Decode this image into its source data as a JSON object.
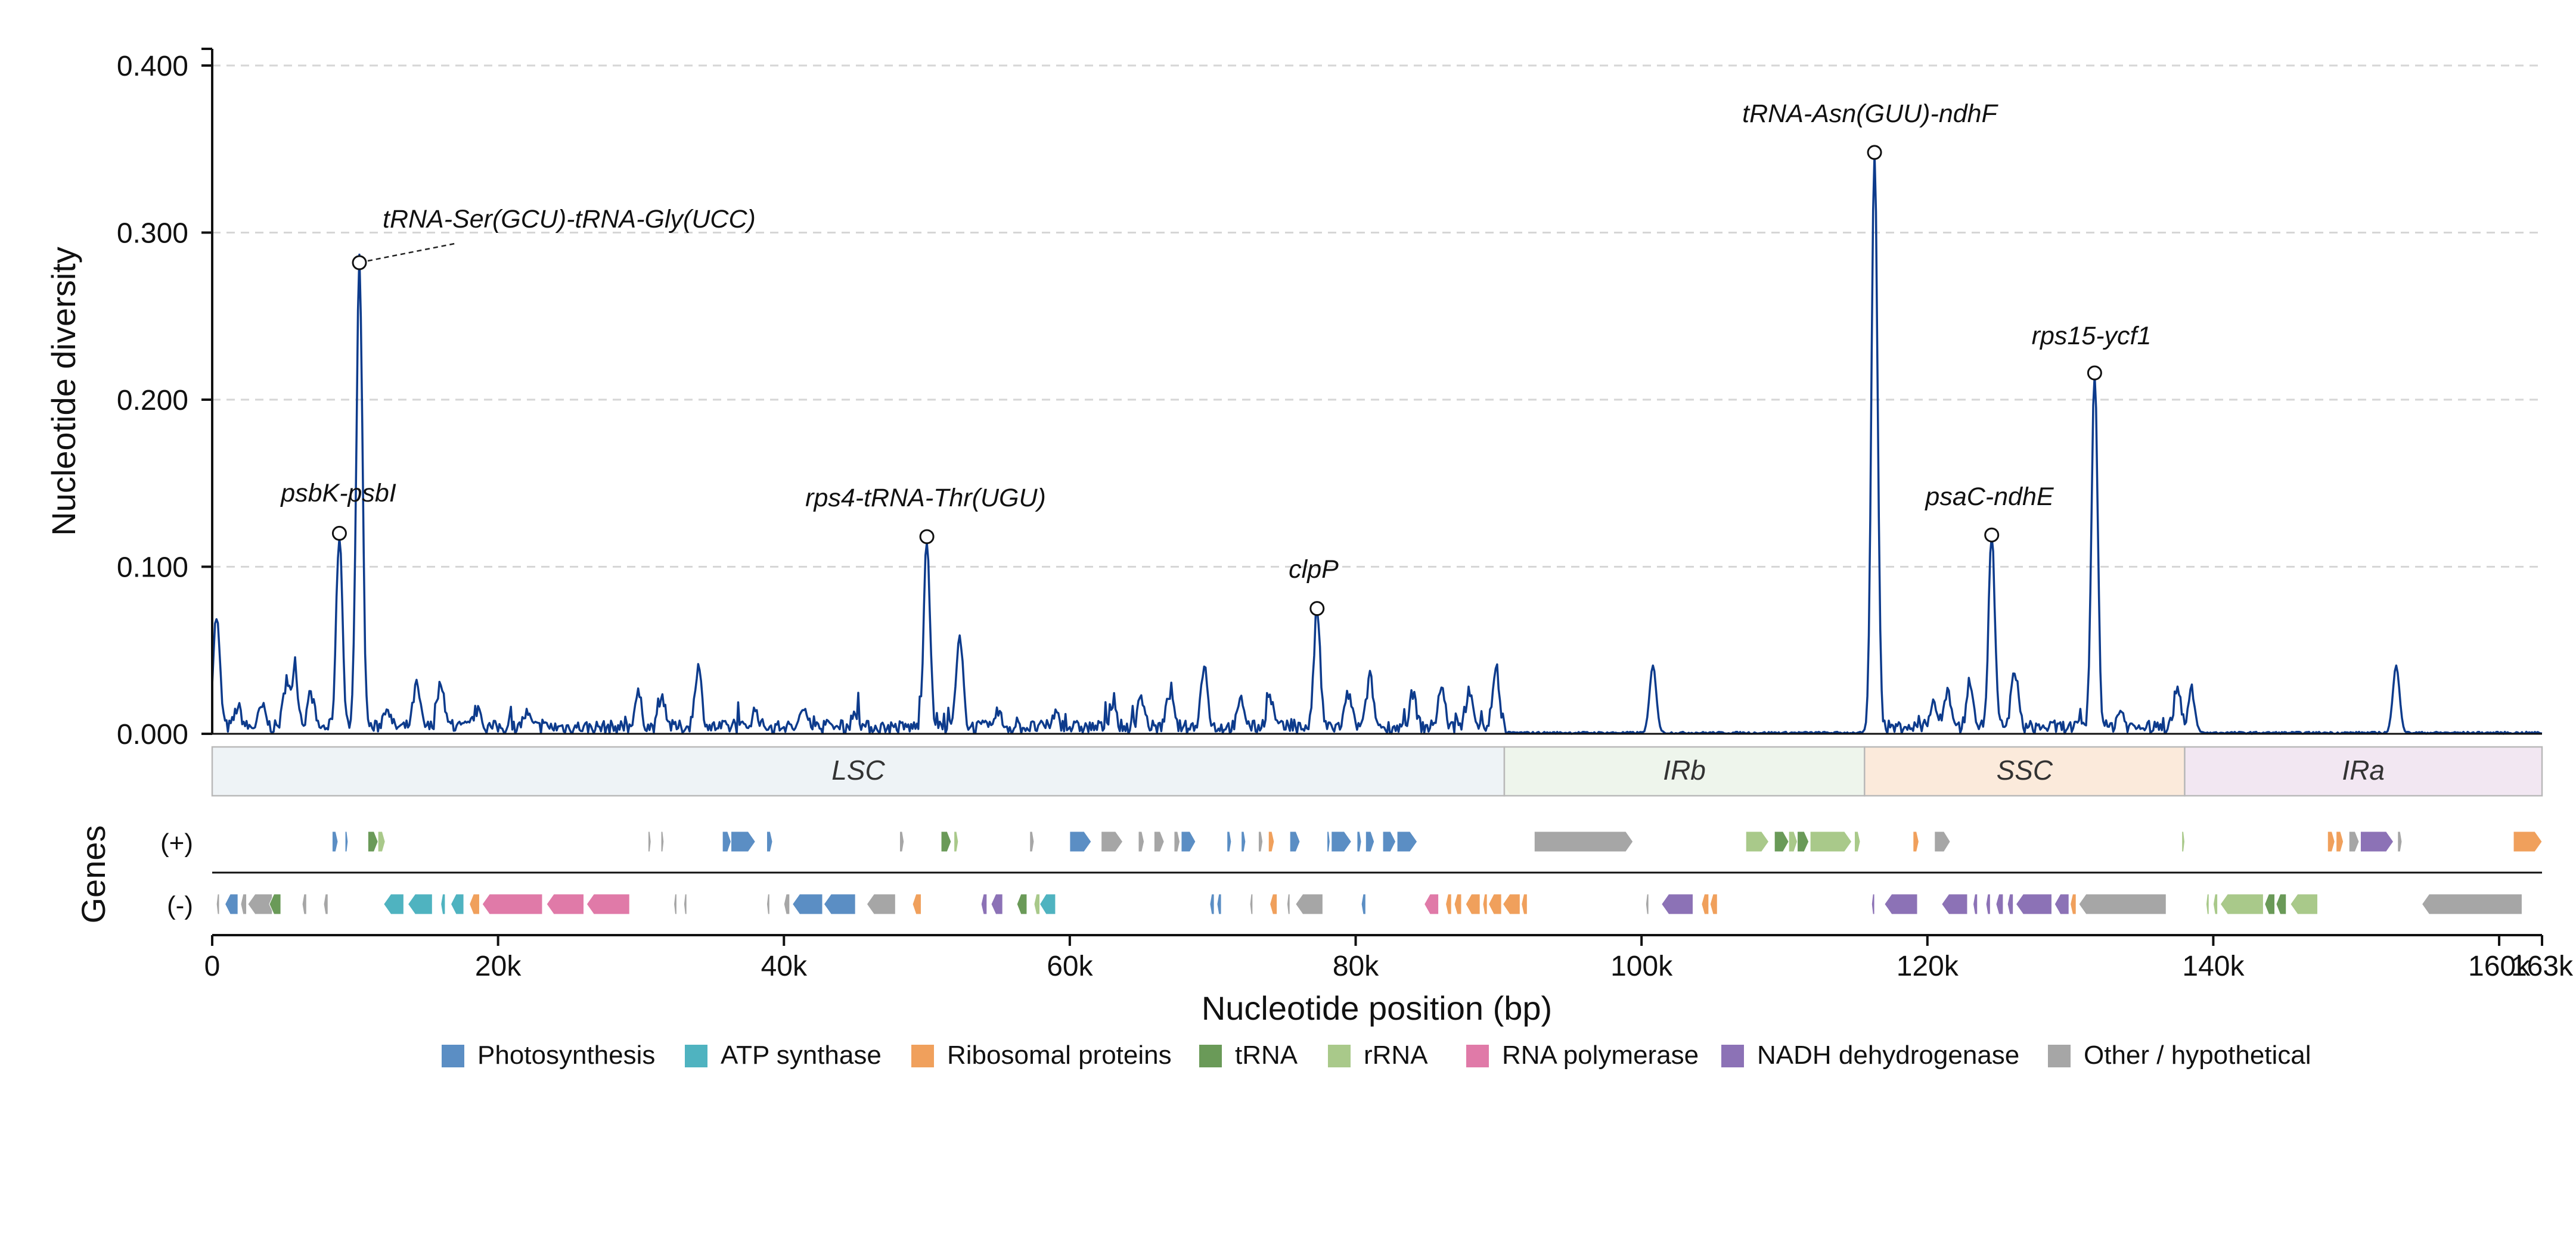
{
  "chart_data": {
    "type": "line",
    "title": "",
    "xlabel": "Nucleotide position (bp)",
    "ylabel": "Nucleotide diversity",
    "xlim": [
      0,
      163000
    ],
    "ylim": [
      0,
      0.41
    ],
    "x_ticks": [
      0,
      20000,
      40000,
      60000,
      80000,
      100000,
      120000,
      140000,
      160000,
      163000
    ],
    "x_tick_labels": [
      "0",
      "20k",
      "40k",
      "60k",
      "80k",
      "100k",
      "120k",
      "140k",
      "160k",
      "163k"
    ],
    "y_ticks": [
      0,
      0.1,
      0.2,
      0.3,
      0.4
    ],
    "y_tick_labels": [
      "0.000",
      "0.100",
      "0.200",
      "0.300",
      "0.400"
    ],
    "grid": "horizontal dashed",
    "line_color": "#0d3b8c",
    "peaks": [
      {
        "label": "psbK-psbI",
        "x": 8900,
        "y": 0.12
      },
      {
        "label": "tRNA-Ser(GCU)-tRNA-Gly(UCC)",
        "x": 10300,
        "y": 0.282
      },
      {
        "label": "rps4-tRNA-Thr(UGU)",
        "x": 50000,
        "y": 0.118
      },
      {
        "label": "clpP",
        "x": 77300,
        "y": 0.075
      },
      {
        "label": "tRNA-Asn(GUU)-ndhF",
        "x": 116300,
        "y": 0.348
      },
      {
        "label": "psaC-ndhE",
        "x": 124500,
        "y": 0.119
      },
      {
        "label": "rps15-ycf1",
        "x": 131700,
        "y": 0.216
      }
    ],
    "baseline_bumps": [
      [
        300,
        0.066
      ],
      [
        1800,
        0.012
      ],
      [
        3500,
        0.012
      ],
      [
        5200,
        0.026
      ],
      [
        5800,
        0.03
      ],
      [
        6900,
        0.02
      ],
      [
        12200,
        0.012
      ],
      [
        14300,
        0.025
      ],
      [
        16000,
        0.028
      ],
      [
        18500,
        0.01
      ],
      [
        22000,
        0.008
      ],
      [
        29800,
        0.02
      ],
      [
        31500,
        0.018
      ],
      [
        34000,
        0.036
      ],
      [
        38000,
        0.01
      ],
      [
        41500,
        0.012
      ],
      [
        45000,
        0.009
      ],
      [
        52300,
        0.052
      ],
      [
        55000,
        0.008
      ],
      [
        59000,
        0.008
      ],
      [
        63000,
        0.012
      ],
      [
        65000,
        0.018
      ],
      [
        67000,
        0.02
      ],
      [
        69400,
        0.035
      ],
      [
        72000,
        0.016
      ],
      [
        74000,
        0.018
      ],
      [
        79500,
        0.02
      ],
      [
        81000,
        0.03
      ],
      [
        84000,
        0.02
      ],
      [
        86000,
        0.024
      ],
      [
        88000,
        0.022
      ],
      [
        89800,
        0.032
      ],
      [
        100800,
        0.04
      ],
      [
        120400,
        0.016
      ],
      [
        121400,
        0.022
      ],
      [
        123000,
        0.028
      ],
      [
        126100,
        0.035
      ],
      [
        133500,
        0.01
      ],
      [
        137500,
        0.025
      ],
      [
        138500,
        0.022
      ],
      [
        152800,
        0.04
      ]
    ],
    "regions": [
      {
        "name": "LSC",
        "start": 0,
        "end": 90400,
        "fill": "#eef3f6"
      },
      {
        "name": "IRb",
        "start": 90400,
        "end": 115600,
        "fill": "#eef5ec"
      },
      {
        "name": "SSC",
        "start": 115600,
        "end": 138000,
        "fill": "#fbeadb"
      },
      {
        "name": "IRa",
        "start": 138000,
        "end": 163000,
        "fill": "#f2e7f2"
      }
    ],
    "gene_track": {
      "title": "Genes",
      "plus_label": "(+)",
      "minus_label": "(-)",
      "categories": [
        {
          "name": "Photosynthesis",
          "color": "#5b8ec4"
        },
        {
          "name": "ATP synthase",
          "color": "#4fb3c0"
        },
        {
          "name": "Ribosomal proteins",
          "color": "#f0a05c"
        },
        {
          "name": "tRNA",
          "color": "#6a9a58"
        },
        {
          "name": "rRNA",
          "color": "#a9c98a"
        },
        {
          "name": "RNA polymerase",
          "color": "#e07aa8"
        },
        {
          "name": "NADH dehydrogenase",
          "color": "#8c72b6"
        },
        {
          "name": "Other / hypothetical",
          "color": "#a6a6a6"
        }
      ],
      "plus_genes": [
        [
          8400,
          8800,
          0
        ],
        [
          9300,
          9500,
          0
        ],
        [
          10900,
          11600,
          3
        ],
        [
          11600,
          12100,
          4
        ],
        [
          30500,
          30700,
          7
        ],
        [
          31400,
          31600,
          7
        ],
        [
          35700,
          36300,
          0
        ],
        [
          36300,
          38000,
          0
        ],
        [
          38800,
          39200,
          0
        ],
        [
          48100,
          48400,
          7
        ],
        [
          51000,
          51700,
          3
        ],
        [
          51900,
          52200,
          4
        ],
        [
          57200,
          57500,
          7
        ],
        [
          60000,
          61500,
          0
        ],
        [
          62200,
          63700,
          7
        ],
        [
          64800,
          65200,
          7
        ],
        [
          65900,
          66600,
          7
        ],
        [
          67300,
          67700,
          7
        ],
        [
          67800,
          68800,
          0
        ],
        [
          71000,
          71300,
          0
        ],
        [
          72000,
          72300,
          0
        ],
        [
          73200,
          73500,
          7
        ],
        [
          73900,
          74300,
          2
        ],
        [
          75400,
          76100,
          0
        ],
        [
          78000,
          78200,
          0
        ],
        [
          78300,
          79700,
          0
        ],
        [
          80100,
          80400,
          0
        ],
        [
          80700,
          81300,
          0
        ],
        [
          81900,
          82800,
          0
        ],
        [
          82900,
          84300,
          0
        ],
        [
          92500,
          99400,
          7
        ],
        [
          107300,
          108900,
          4
        ],
        [
          109300,
          110300,
          3
        ],
        [
          110300,
          110900,
          4
        ],
        [
          110900,
          111700,
          3
        ],
        [
          111800,
          114700,
          4
        ],
        [
          114900,
          115300,
          4
        ],
        [
          119000,
          119400,
          2
        ],
        [
          120500,
          121600,
          7
        ],
        [
          137800,
          138000,
          4
        ],
        [
          148000,
          148500,
          2
        ],
        [
          148600,
          149100,
          2
        ],
        [
          149500,
          150200,
          7
        ],
        [
          150300,
          152600,
          6
        ],
        [
          152900,
          153200,
          7
        ],
        [
          161000,
          163000,
          2
        ]
      ],
      "minus_genes": [
        [
          300,
          500,
          7
        ],
        [
          900,
          1800,
          0
        ],
        [
          2000,
          2400,
          7
        ],
        [
          2500,
          4200,
          7
        ],
        [
          4000,
          4800,
          3
        ],
        [
          6300,
          6600,
          7
        ],
        [
          7800,
          8100,
          7
        ],
        [
          12000,
          13400,
          1
        ],
        [
          13700,
          15400,
          1
        ],
        [
          16000,
          16300,
          1
        ],
        [
          16700,
          17600,
          1
        ],
        [
          18000,
          18700,
          2
        ],
        [
          18900,
          23100,
          5
        ],
        [
          23400,
          26000,
          5
        ],
        [
          26200,
          29200,
          5
        ],
        [
          32300,
          32500,
          7
        ],
        [
          33000,
          33200,
          7
        ],
        [
          38800,
          39000,
          7
        ],
        [
          40000,
          40400,
          7
        ],
        [
          40600,
          42700,
          0
        ],
        [
          42800,
          45000,
          0
        ],
        [
          45800,
          47800,
          7
        ],
        [
          49000,
          49600,
          2
        ],
        [
          53800,
          54200,
          6
        ],
        [
          54500,
          55300,
          6
        ],
        [
          56300,
          57000,
          3
        ],
        [
          57500,
          57900,
          4
        ],
        [
          57900,
          59000,
          1
        ],
        [
          69800,
          70100,
          0
        ],
        [
          70300,
          70600,
          0
        ],
        [
          72600,
          72800,
          7
        ],
        [
          74000,
          74500,
          2
        ],
        [
          75200,
          75400,
          7
        ],
        [
          75800,
          77700,
          7
        ],
        [
          80400,
          80700,
          0
        ],
        [
          84800,
          85800,
          5
        ],
        [
          86300,
          86700,
          2
        ],
        [
          86900,
          87400,
          2
        ],
        [
          87700,
          88700,
          2
        ],
        [
          88900,
          89200,
          2
        ],
        [
          89300,
          90200,
          2
        ],
        [
          90300,
          91500,
          2
        ],
        [
          91600,
          92000,
          2
        ],
        [
          100300,
          100500,
          7
        ],
        [
          101400,
          103600,
          6
        ],
        [
          104200,
          104700,
          2
        ],
        [
          104800,
          105300,
          2
        ],
        [
          116100,
          116300,
          6
        ],
        [
          117000,
          119300,
          6
        ],
        [
          121000,
          122800,
          6
        ],
        [
          123200,
          123500,
          6
        ],
        [
          124100,
          124400,
          6
        ],
        [
          124800,
          125300,
          6
        ],
        [
          125600,
          126000,
          6
        ],
        [
          126200,
          128700,
          6
        ],
        [
          128900,
          129900,
          6
        ],
        [
          130000,
          130400,
          2
        ],
        [
          130600,
          136700,
          7
        ],
        [
          139500,
          139700,
          4
        ],
        [
          140000,
          140300,
          4
        ],
        [
          140500,
          143500,
          4
        ],
        [
          143600,
          144300,
          3
        ],
        [
          144400,
          145100,
          3
        ],
        [
          145400,
          147300,
          4
        ],
        [
          154600,
          161600,
          7
        ]
      ]
    },
    "legend": {
      "placement": "bottom-center"
    }
  }
}
